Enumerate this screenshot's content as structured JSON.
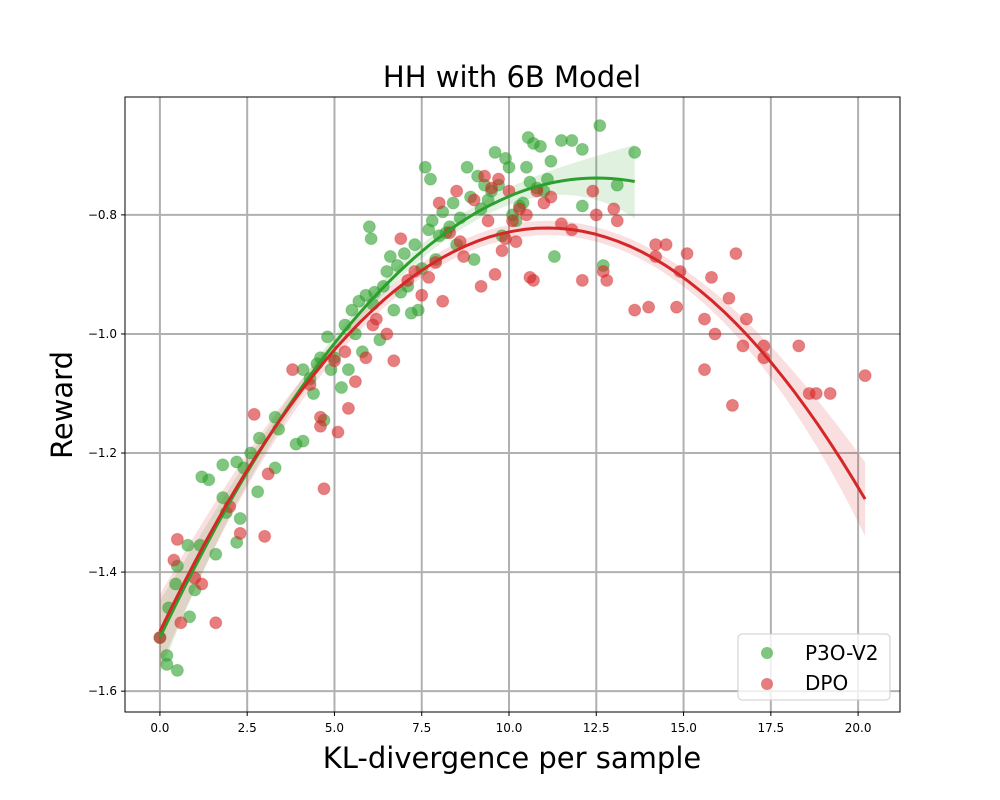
{
  "chart_data": {
    "type": "scatter",
    "title": "HH with 6B Model",
    "xlabel": "KL-divergence per sample",
    "ylabel": "Reward",
    "xlim": [
      -1.0,
      21.2
    ],
    "ylim": [
      -1.635,
      -0.602
    ],
    "xticks": [
      0.0,
      2.5,
      5.0,
      7.5,
      10.0,
      12.5,
      15.0,
      17.5,
      20.0
    ],
    "xtick_labels": [
      "0.0",
      "2.5",
      "5.0",
      "7.5",
      "10.0",
      "12.5",
      "15.0",
      "17.5",
      "20.0"
    ],
    "yticks": [
      -0.8,
      -1.0,
      -1.2,
      -1.4,
      -1.6
    ],
    "ytick_labels": [
      "−0.8",
      "−1.0",
      "−1.2",
      "−1.4",
      "−1.6"
    ],
    "grid": true,
    "legend_position": "lower-right",
    "series": [
      {
        "name": "P3O-V2",
        "color": "#2ca02c",
        "fit": {
          "type": "quadratic",
          "x_range": [
            0.0,
            13.6
          ],
          "vertex_x": 12.5,
          "vertex_y": -0.738,
          "curvature": 0.00494
        },
        "points": [
          [
            0.0,
            -1.51
          ],
          [
            0.2,
            -1.54
          ],
          [
            0.2,
            -1.555
          ],
          [
            0.25,
            -1.46
          ],
          [
            0.45,
            -1.42
          ],
          [
            0.5,
            -1.39
          ],
          [
            0.5,
            -1.565
          ],
          [
            0.8,
            -1.355
          ],
          [
            0.85,
            -1.475
          ],
          [
            1.0,
            -1.43
          ],
          [
            1.15,
            -1.355
          ],
          [
            1.2,
            -1.24
          ],
          [
            1.4,
            -1.245
          ],
          [
            1.6,
            -1.37
          ],
          [
            1.8,
            -1.22
          ],
          [
            1.8,
            -1.275
          ],
          [
            1.9,
            -1.3
          ],
          [
            2.2,
            -1.215
          ],
          [
            2.2,
            -1.35
          ],
          [
            2.3,
            -1.31
          ],
          [
            2.4,
            -1.225
          ],
          [
            2.6,
            -1.2
          ],
          [
            2.8,
            -1.265
          ],
          [
            2.85,
            -1.175
          ],
          [
            3.3,
            -1.14
          ],
          [
            3.3,
            -1.225
          ],
          [
            3.4,
            -1.16
          ],
          [
            3.9,
            -1.185
          ],
          [
            4.1,
            -1.06
          ],
          [
            4.1,
            -1.18
          ],
          [
            4.3,
            -1.075
          ],
          [
            4.4,
            -1.1
          ],
          [
            4.5,
            -1.05
          ],
          [
            4.6,
            -1.04
          ],
          [
            4.7,
            -1.145
          ],
          [
            4.8,
            -1.005
          ],
          [
            4.9,
            -1.06
          ],
          [
            5.0,
            -1.04
          ],
          [
            5.2,
            -1.09
          ],
          [
            5.3,
            -0.985
          ],
          [
            5.4,
            -1.06
          ],
          [
            5.5,
            -0.96
          ],
          [
            5.6,
            -1.0
          ],
          [
            5.7,
            -0.945
          ],
          [
            5.8,
            -1.03
          ],
          [
            5.9,
            -0.935
          ],
          [
            6.0,
            -0.82
          ],
          [
            6.05,
            -0.84
          ],
          [
            6.1,
            -0.95
          ],
          [
            6.15,
            -0.93
          ],
          [
            6.3,
            -1.01
          ],
          [
            6.4,
            -0.92
          ],
          [
            6.5,
            -0.895
          ],
          [
            6.6,
            -0.87
          ],
          [
            6.7,
            -0.96
          ],
          [
            6.8,
            -0.885
          ],
          [
            6.9,
            -0.93
          ],
          [
            7.0,
            -0.865
          ],
          [
            7.1,
            -0.92
          ],
          [
            7.2,
            -0.965
          ],
          [
            7.3,
            -0.85
          ],
          [
            7.4,
            -0.96
          ],
          [
            7.5,
            -0.89
          ],
          [
            7.6,
            -0.72
          ],
          [
            7.7,
            -0.825
          ],
          [
            7.75,
            -0.74
          ],
          [
            7.8,
            -0.81
          ],
          [
            7.9,
            -0.875
          ],
          [
            8.0,
            -0.835
          ],
          [
            8.1,
            -0.795
          ],
          [
            8.2,
            -0.83
          ],
          [
            8.3,
            -0.82
          ],
          [
            8.4,
            -0.78
          ],
          [
            8.5,
            -0.85
          ],
          [
            8.6,
            -0.805
          ],
          [
            8.8,
            -0.72
          ],
          [
            8.9,
            -0.77
          ],
          [
            9.0,
            -0.875
          ],
          [
            9.1,
            -0.735
          ],
          [
            9.2,
            -0.79
          ],
          [
            9.3,
            -0.75
          ],
          [
            9.4,
            -0.775
          ],
          [
            9.5,
            -0.76
          ],
          [
            9.6,
            -0.695
          ],
          [
            9.7,
            -0.75
          ],
          [
            9.8,
            -0.835
          ],
          [
            9.9,
            -0.705
          ],
          [
            10.0,
            -0.72
          ],
          [
            10.1,
            -0.8
          ],
          [
            10.2,
            -0.81
          ],
          [
            10.3,
            -0.785
          ],
          [
            10.4,
            -0.78
          ],
          [
            10.5,
            -0.72
          ],
          [
            10.55,
            -0.67
          ],
          [
            10.6,
            -0.745
          ],
          [
            10.7,
            -0.68
          ],
          [
            10.8,
            -0.755
          ],
          [
            10.9,
            -0.685
          ],
          [
            11.0,
            -0.76
          ],
          [
            11.1,
            -0.74
          ],
          [
            11.2,
            -0.71
          ],
          [
            11.3,
            -0.87
          ],
          [
            11.5,
            -0.675
          ],
          [
            11.8,
            -0.675
          ],
          [
            12.1,
            -0.69
          ],
          [
            12.1,
            -0.785
          ],
          [
            12.6,
            -0.65
          ],
          [
            12.7,
            -0.885
          ],
          [
            13.1,
            -0.75
          ],
          [
            13.6,
            -0.695
          ]
        ]
      },
      {
        "name": "DPO",
        "color": "#d62728",
        "fit": {
          "type": "quadratic",
          "x_range": [
            0.0,
            20.2
          ],
          "vertex_x": 11.1,
          "vertex_y": -0.822,
          "curvature": 0.0055
        },
        "points": [
          [
            0.0,
            -1.51
          ],
          [
            0.4,
            -1.38
          ],
          [
            0.5,
            -1.345
          ],
          [
            0.6,
            -1.485
          ],
          [
            1.0,
            -1.41
          ],
          [
            1.2,
            -1.42
          ],
          [
            1.6,
            -1.485
          ],
          [
            2.0,
            -1.29
          ],
          [
            2.3,
            -1.335
          ],
          [
            2.7,
            -1.135
          ],
          [
            3.0,
            -1.34
          ],
          [
            3.1,
            -1.235
          ],
          [
            3.8,
            -1.06
          ],
          [
            4.3,
            -1.085
          ],
          [
            4.6,
            -1.14
          ],
          [
            4.6,
            -1.155
          ],
          [
            4.7,
            -1.26
          ],
          [
            5.0,
            -1.045
          ],
          [
            5.1,
            -1.165
          ],
          [
            5.3,
            -1.03
          ],
          [
            5.4,
            -1.125
          ],
          [
            5.6,
            -1.08
          ],
          [
            5.9,
            -1.04
          ],
          [
            6.1,
            -0.985
          ],
          [
            6.2,
            -0.975
          ],
          [
            6.5,
            -1.0
          ],
          [
            6.7,
            -1.045
          ],
          [
            6.9,
            -0.84
          ],
          [
            7.1,
            -0.91
          ],
          [
            7.3,
            -0.895
          ],
          [
            7.5,
            -0.935
          ],
          [
            7.7,
            -0.905
          ],
          [
            7.9,
            -0.88
          ],
          [
            8.0,
            -0.78
          ],
          [
            8.1,
            -0.945
          ],
          [
            8.3,
            -0.83
          ],
          [
            8.5,
            -0.76
          ],
          [
            8.6,
            -0.845
          ],
          [
            8.7,
            -0.87
          ],
          [
            9.0,
            -0.775
          ],
          [
            9.2,
            -0.92
          ],
          [
            9.3,
            -0.735
          ],
          [
            9.4,
            -0.81
          ],
          [
            9.5,
            -0.755
          ],
          [
            9.6,
            -0.9
          ],
          [
            9.7,
            -0.74
          ],
          [
            9.8,
            -0.86
          ],
          [
            9.9,
            -0.84
          ],
          [
            10.0,
            -0.76
          ],
          [
            10.1,
            -0.81
          ],
          [
            10.2,
            -0.845
          ],
          [
            10.3,
            -0.79
          ],
          [
            10.5,
            -0.8
          ],
          [
            10.6,
            -0.905
          ],
          [
            10.7,
            -0.91
          ],
          [
            10.8,
            -0.76
          ],
          [
            11.0,
            -0.78
          ],
          [
            11.2,
            -0.77
          ],
          [
            11.5,
            -0.815
          ],
          [
            11.8,
            -0.825
          ],
          [
            12.1,
            -0.91
          ],
          [
            12.4,
            -0.76
          ],
          [
            12.5,
            -0.8
          ],
          [
            12.7,
            -0.895
          ],
          [
            12.8,
            -0.91
          ],
          [
            13.0,
            -0.79
          ],
          [
            13.1,
            -0.81
          ],
          [
            13.6,
            -0.96
          ],
          [
            14.0,
            -0.955
          ],
          [
            14.2,
            -0.85
          ],
          [
            14.2,
            -0.87
          ],
          [
            14.5,
            -0.85
          ],
          [
            14.8,
            -0.955
          ],
          [
            14.9,
            -0.895
          ],
          [
            15.1,
            -0.865
          ],
          [
            15.6,
            -0.975
          ],
          [
            15.6,
            -1.06
          ],
          [
            15.8,
            -0.905
          ],
          [
            15.9,
            -1.0
          ],
          [
            16.3,
            -0.94
          ],
          [
            16.4,
            -1.12
          ],
          [
            16.5,
            -0.865
          ],
          [
            16.7,
            -1.02
          ],
          [
            16.8,
            -0.975
          ],
          [
            17.3,
            -1.02
          ],
          [
            17.3,
            -1.04
          ],
          [
            18.3,
            -1.02
          ],
          [
            18.6,
            -1.1
          ],
          [
            18.8,
            -1.1
          ],
          [
            19.2,
            -1.1
          ],
          [
            20.2,
            -1.07
          ]
        ]
      }
    ]
  }
}
